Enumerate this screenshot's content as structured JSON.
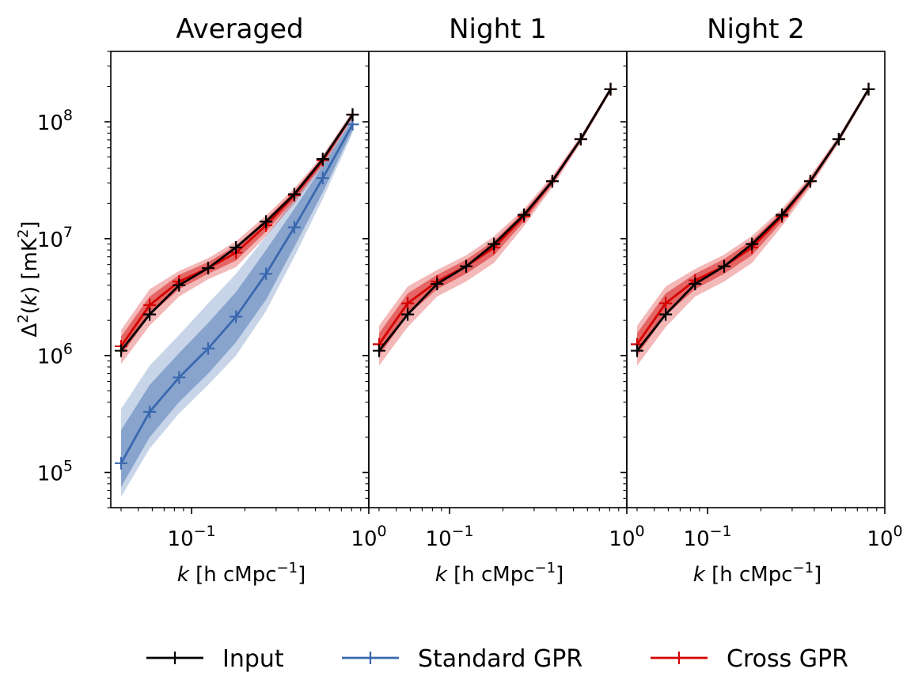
{
  "chart_data": {
    "type": "line",
    "layout": "three panels side by side, shared y axis, legend bottom-center",
    "ylabel_parts": {
      "base": "Δ",
      "exp": "2",
      "mid": "(",
      "arg": "k",
      "close": ") [mK",
      "unit_exp": "2",
      "end": "]"
    },
    "xlabel_parts": {
      "k": "k",
      "open": " [h cMpc",
      "exp": "−1",
      "close": "]"
    },
    "x_scale": "log",
    "y_scale": "log",
    "xlim": [
      0.035,
      1.0
    ],
    "ylim": [
      50000,
      400000000
    ],
    "x_ticks": [
      {
        "value": 0.1,
        "base": "10",
        "exp": "−1"
      },
      {
        "value": 1.0,
        "base": "10",
        "exp": "0"
      }
    ],
    "y_ticks": [
      {
        "value": 100000,
        "base": "10",
        "exp": "5"
      },
      {
        "value": 1000000,
        "base": "10",
        "exp": "6"
      },
      {
        "value": 10000000,
        "base": "10",
        "exp": "7"
      },
      {
        "value": 100000000,
        "base": "10",
        "exp": "8"
      }
    ],
    "colors": {
      "input": "#000000",
      "standard": "#3a68ae",
      "cross": "#d40000"
    },
    "panels": [
      {
        "title": "Averaged",
        "series": [
          {
            "name": "Standard GPR",
            "x": [
              0.04,
              0.058,
              0.085,
              0.124,
              0.178,
              0.263,
              0.38,
              0.55,
              0.81
            ],
            "y": [
              120000,
              330000,
              650000,
              1150000,
              2150000,
              5000000,
              12500000,
              33000000,
              95000000
            ],
            "band1": [
              [
                75000,
                230000
              ],
              [
                200000,
                560000
              ],
              [
                400000,
                1050000
              ],
              [
                700000,
                1900000
              ],
              [
                1300000,
                3500000
              ],
              [
                3000000,
                8000000
              ],
              [
                8500000,
                18000000
              ],
              [
                25000000,
                42000000
              ],
              [
                85000000,
                105000000
              ]
            ],
            "band2": [
              [
                62000,
                350000
              ],
              [
                160000,
                820000
              ],
              [
                320000,
                1500000
              ],
              [
                560000,
                2800000
              ],
              [
                1000000,
                5000000
              ],
              [
                2400000,
                10500000
              ],
              [
                7000000,
                22000000
              ],
              [
                22000000,
                47000000
              ],
              [
                80000000,
                110000000
              ]
            ]
          },
          {
            "name": "Cross GPR",
            "x": [
              0.04,
              0.058,
              0.085,
              0.124,
              0.178,
              0.263,
              0.38,
              0.55,
              0.81
            ],
            "y": [
              1200000,
              2700000,
              4300000,
              5600000,
              7600000,
              13000000,
              23500000,
              47000000,
              115000000
            ],
            "band1": [
              [
                1000000,
                1450000
              ],
              [
                2200000,
                3200000
              ],
              [
                3700000,
                4900000
              ],
              [
                5000000,
                6300000
              ],
              [
                6500000,
                8700000
              ],
              [
                11500000,
                14700000
              ],
              [
                21500000,
                25500000
              ],
              [
                44000000,
                50000000
              ],
              [
                110000000,
                120000000
              ]
            ],
            "band2": [
              [
                850000,
                1650000
              ],
              [
                1800000,
                3700000
              ],
              [
                3200000,
                5300000
              ],
              [
                4500000,
                6800000
              ],
              [
                5700000,
                9500000
              ],
              [
                10500000,
                15800000
              ],
              [
                20000000,
                27000000
              ],
              [
                42000000,
                52000000
              ],
              [
                107000000,
                123000000
              ]
            ]
          },
          {
            "name": "Input",
            "x": [
              0.04,
              0.058,
              0.085,
              0.124,
              0.178,
              0.263,
              0.38,
              0.55,
              0.81
            ],
            "y": [
              1100000,
              2250000,
              4000000,
              5600000,
              8400000,
              14000000,
              24000000,
              48000000,
              115000000
            ]
          }
        ]
      },
      {
        "title": "Night 1",
        "series": [
          {
            "name": "Cross GPR",
            "x": [
              0.04,
              0.058,
              0.085,
              0.124,
              0.178,
              0.263,
              0.38,
              0.55,
              0.81
            ],
            "y": [
              1250000,
              2800000,
              4300000,
              5800000,
              8400000,
              15500000,
              31000000,
              71000000,
              190000000
            ],
            "band1": [
              [
                1000000,
                1550000
              ],
              [
                2200000,
                3400000
              ],
              [
                3700000,
                4900000
              ],
              [
                5000000,
                6600000
              ],
              [
                7200000,
                9600000
              ],
              [
                14000000,
                17000000
              ],
              [
                29000000,
                33000000
              ],
              [
                68000000,
                74000000
              ],
              [
                185000000,
                195000000
              ]
            ],
            "band2": [
              [
                820000,
                1800000
              ],
              [
                1750000,
                3900000
              ],
              [
                3200000,
                5400000
              ],
              [
                4300000,
                7200000
              ],
              [
                6200000,
                10500000
              ],
              [
                12800000,
                18000000
              ],
              [
                27500000,
                34500000
              ],
              [
                66000000,
                76000000
              ],
              [
                180000000,
                200000000
              ]
            ]
          },
          {
            "name": "Input",
            "x": [
              0.04,
              0.058,
              0.085,
              0.124,
              0.178,
              0.263,
              0.38,
              0.55,
              0.81
            ],
            "y": [
              1100000,
              2250000,
              4100000,
              5800000,
              9000000,
              16000000,
              31000000,
              71000000,
              190000000
            ]
          }
        ]
      },
      {
        "title": "Night 2",
        "series": [
          {
            "name": "Cross GPR",
            "x": [
              0.04,
              0.058,
              0.085,
              0.124,
              0.178,
              0.263,
              0.38,
              0.55,
              0.81
            ],
            "y": [
              1250000,
              2800000,
              4400000,
              5800000,
              8400000,
              15500000,
              31000000,
              71000000,
              190000000
            ],
            "band1": [
              [
                1000000,
                1550000
              ],
              [
                2200000,
                3400000
              ],
              [
                3700000,
                5000000
              ],
              [
                5000000,
                6700000
              ],
              [
                7200000,
                9700000
              ],
              [
                14000000,
                17000000
              ],
              [
                29000000,
                33000000
              ],
              [
                68000000,
                74000000
              ],
              [
                185000000,
                195000000
              ]
            ],
            "band2": [
              [
                820000,
                1800000
              ],
              [
                1750000,
                3900000
              ],
              [
                3200000,
                5500000
              ],
              [
                4300000,
                7300000
              ],
              [
                6200000,
                10600000
              ],
              [
                12800000,
                18000000
              ],
              [
                27500000,
                34500000
              ],
              [
                66000000,
                76000000
              ],
              [
                180000000,
                200000000
              ]
            ]
          },
          {
            "name": "Input",
            "x": [
              0.04,
              0.058,
              0.085,
              0.124,
              0.178,
              0.263,
              0.38,
              0.55,
              0.81
            ],
            "y": [
              1100000,
              2250000,
              4100000,
              5800000,
              9000000,
              16000000,
              31000000,
              71000000,
              190000000
            ]
          }
        ]
      }
    ],
    "legend": {
      "placement": "bottom-center",
      "entries": [
        {
          "label": "Input",
          "color": "#000000"
        },
        {
          "label": "Standard GPR",
          "color": "#3a68ae"
        },
        {
          "label": "Cross GPR",
          "color": "#d40000"
        }
      ]
    }
  }
}
